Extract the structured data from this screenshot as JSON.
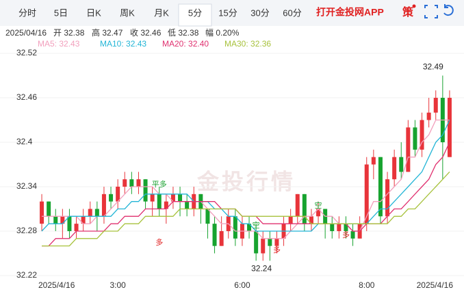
{
  "tabs": {
    "items": [
      "分时",
      "5日",
      "日K",
      "周K",
      "月K",
      "5分",
      "15分",
      "30分",
      "60分"
    ],
    "active": 5
  },
  "app_link": "打开金投网APP",
  "strategy": "策",
  "info": {
    "date": "2025/04/16",
    "fields": [
      "开 32.38",
      "高 32.47",
      "收 32.46",
      "低 32.38",
      "幅 0.20%"
    ]
  },
  "chart_data": {
    "type": "candlestick",
    "watermark": "金投行情",
    "categories": [
      "2025/4/16",
      null,
      null,
      null,
      null,
      null,
      null,
      null,
      null,
      null,
      null,
      "3:00",
      null,
      null,
      null,
      null,
      null,
      null,
      null,
      null,
      null,
      null,
      null,
      null,
      null,
      null,
      null,
      null,
      null,
      "6:00",
      null,
      null,
      null,
      null,
      null,
      null,
      null,
      null,
      null,
      null,
      null,
      null,
      null,
      null,
      null,
      null,
      null,
      "8:00",
      null,
      null,
      null,
      null,
      null,
      null,
      null,
      null,
      null,
      null,
      null,
      "2025/4/16"
    ],
    "open": [
      32.29,
      32.32,
      32.3,
      32.29,
      32.3,
      32.28,
      32.29,
      32.3,
      32.31,
      32.3,
      32.33,
      32.32,
      32.34,
      32.35,
      32.34,
      32.35,
      32.32,
      32.33,
      32.31,
      32.32,
      32.33,
      32.32,
      32.31,
      32.33,
      32.31,
      32.29,
      32.26,
      32.28,
      32.3,
      32.27,
      32.29,
      32.28,
      32.25,
      32.27,
      32.26,
      32.27,
      32.29,
      32.3,
      32.33,
      32.29,
      32.3,
      32.31,
      32.29,
      32.28,
      32.29,
      32.28,
      32.27,
      32.29,
      32.37,
      32.38,
      32.3,
      32.35,
      32.38,
      32.36,
      32.42,
      32.39,
      32.43,
      32.44,
      32.46,
      32.38
    ],
    "high": [
      32.33,
      32.32,
      32.31,
      32.31,
      32.31,
      32.3,
      32.31,
      32.32,
      32.32,
      32.34,
      32.34,
      32.35,
      32.36,
      32.36,
      32.36,
      32.35,
      32.34,
      32.34,
      32.33,
      32.34,
      32.34,
      32.33,
      32.34,
      32.33,
      32.31,
      32.3,
      32.3,
      32.31,
      32.31,
      32.3,
      32.3,
      32.29,
      32.28,
      32.28,
      32.28,
      32.3,
      32.31,
      32.33,
      32.33,
      32.31,
      32.32,
      32.31,
      32.3,
      32.3,
      32.3,
      32.29,
      32.3,
      32.38,
      32.39,
      32.38,
      32.36,
      32.39,
      32.4,
      32.43,
      32.43,
      32.44,
      32.46,
      32.47,
      32.49,
      32.47
    ],
    "low": [
      32.28,
      32.29,
      32.28,
      32.27,
      32.27,
      32.27,
      32.28,
      32.29,
      32.28,
      32.29,
      32.31,
      32.31,
      32.33,
      32.33,
      32.33,
      32.31,
      32.3,
      32.3,
      32.29,
      32.31,
      32.3,
      32.3,
      32.3,
      32.29,
      32.27,
      32.25,
      32.26,
      32.27,
      32.26,
      32.26,
      32.27,
      32.24,
      32.24,
      32.24,
      32.25,
      32.26,
      32.28,
      32.29,
      32.28,
      32.28,
      32.29,
      32.27,
      32.27,
      32.27,
      32.27,
      32.26,
      32.27,
      32.28,
      32.35,
      32.29,
      32.29,
      32.34,
      32.35,
      32.36,
      32.38,
      32.38,
      32.42,
      32.43,
      32.35,
      32.38
    ],
    "close": [
      32.32,
      32.3,
      32.29,
      32.3,
      32.28,
      32.29,
      32.3,
      32.31,
      32.3,
      32.33,
      32.32,
      32.34,
      32.35,
      32.34,
      32.35,
      32.32,
      32.33,
      32.31,
      32.32,
      32.33,
      32.32,
      32.31,
      32.33,
      32.31,
      32.29,
      32.26,
      32.28,
      32.3,
      32.27,
      32.29,
      32.28,
      32.25,
      32.27,
      32.26,
      32.27,
      32.29,
      32.3,
      32.33,
      32.29,
      32.3,
      32.31,
      32.29,
      32.28,
      32.29,
      32.28,
      32.27,
      32.29,
      32.37,
      32.38,
      32.3,
      32.35,
      32.38,
      32.36,
      32.42,
      32.39,
      32.43,
      32.44,
      32.46,
      32.4,
      32.46
    ],
    "up_color": "#e8343a",
    "down_color": "#17a32f",
    "series": [
      {
        "name": "MA5",
        "legend": "MA5: 32.43",
        "color": "#f2a0bd",
        "values": [
          32.3,
          32.3,
          32.3,
          32.3,
          32.3,
          32.3,
          32.29,
          32.29,
          32.3,
          32.3,
          32.31,
          32.32,
          32.33,
          32.34,
          32.34,
          32.34,
          32.34,
          32.33,
          32.33,
          32.32,
          32.32,
          32.32,
          32.32,
          32.32,
          32.31,
          32.3,
          32.29,
          32.29,
          32.28,
          32.28,
          32.28,
          32.28,
          32.27,
          32.27,
          32.27,
          32.27,
          32.28,
          32.29,
          32.3,
          32.3,
          32.31,
          32.3,
          32.3,
          32.29,
          32.29,
          32.28,
          32.28,
          32.3,
          32.32,
          32.32,
          32.33,
          32.34,
          32.35,
          32.38,
          32.38,
          32.4,
          32.41,
          32.43,
          32.43,
          32.43
        ]
      },
      {
        "name": "MA10",
        "legend": "MA10: 32.43",
        "color": "#22b5d6",
        "values": [
          32.28,
          32.29,
          32.29,
          32.29,
          32.3,
          32.3,
          32.3,
          32.3,
          32.3,
          32.3,
          32.3,
          32.31,
          32.31,
          32.32,
          32.32,
          32.33,
          32.33,
          32.33,
          32.33,
          32.33,
          32.33,
          32.33,
          32.32,
          32.32,
          32.32,
          32.31,
          32.31,
          32.3,
          32.3,
          32.29,
          32.29,
          32.28,
          32.28,
          32.28,
          32.28,
          32.28,
          32.28,
          32.28,
          32.28,
          32.28,
          32.29,
          32.29,
          32.29,
          32.29,
          32.29,
          32.29,
          32.29,
          32.29,
          32.3,
          32.31,
          32.31,
          32.32,
          32.33,
          32.34,
          32.35,
          32.36,
          32.38,
          32.4,
          32.41,
          32.43
        ]
      },
      {
        "name": "MA20",
        "legend": "MA20: 32.40",
        "color": "#e0306f",
        "values": [
          32.26,
          32.26,
          32.27,
          32.27,
          32.27,
          32.28,
          32.28,
          32.28,
          32.28,
          32.28,
          32.29,
          32.29,
          32.3,
          32.3,
          32.3,
          32.31,
          32.31,
          32.31,
          32.31,
          32.32,
          32.32,
          32.32,
          32.32,
          32.32,
          32.32,
          32.32,
          32.31,
          32.31,
          32.31,
          32.3,
          32.3,
          32.3,
          32.29,
          32.29,
          32.29,
          32.29,
          32.29,
          32.29,
          32.29,
          32.29,
          32.29,
          32.29,
          32.29,
          32.29,
          32.29,
          32.28,
          32.28,
          32.29,
          32.29,
          32.29,
          32.3,
          32.31,
          32.31,
          32.32,
          32.33,
          32.34,
          32.35,
          32.37,
          32.38,
          32.4
        ]
      },
      {
        "name": "MA30",
        "legend": "MA30: 32.36",
        "color": "#a7c23c",
        "values": [
          32.26,
          32.26,
          32.26,
          32.26,
          32.26,
          32.27,
          32.27,
          32.27,
          32.27,
          32.28,
          32.28,
          32.28,
          32.29,
          32.29,
          32.29,
          32.3,
          32.3,
          32.3,
          32.3,
          32.3,
          32.31,
          32.31,
          32.31,
          32.31,
          32.31,
          32.31,
          32.31,
          32.31,
          32.31,
          32.3,
          32.3,
          32.3,
          32.3,
          32.3,
          32.3,
          32.3,
          32.3,
          32.3,
          32.3,
          32.29,
          32.29,
          32.29,
          32.29,
          32.29,
          32.29,
          32.29,
          32.29,
          32.29,
          32.29,
          32.29,
          32.29,
          32.3,
          32.3,
          32.31,
          32.31,
          32.32,
          32.33,
          32.34,
          32.35,
          32.36
        ]
      }
    ],
    "annotations": [
      "平多",
      "多",
      "空",
      "多",
      "空",
      "多"
    ],
    "ylim": [
      32.21,
      32.53
    ],
    "yticks": [
      32.22,
      32.28,
      32.34,
      32.4,
      32.46,
      32.52
    ],
    "grid": true
  }
}
